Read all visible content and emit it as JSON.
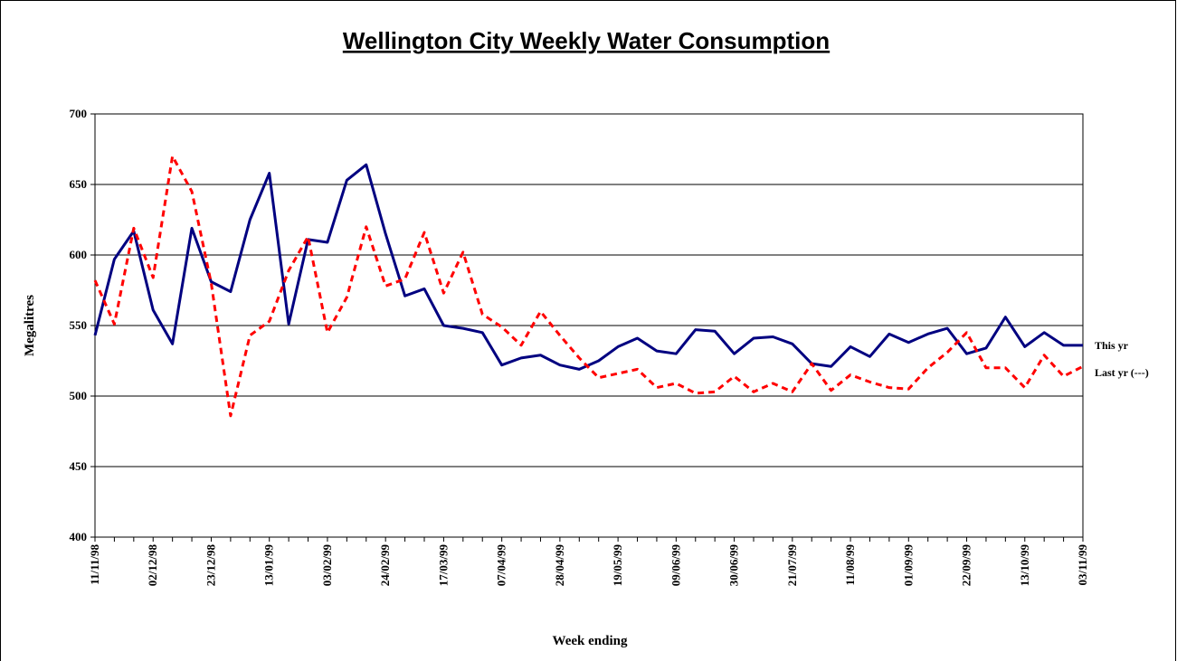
{
  "chart_data": {
    "type": "line",
    "title": "Wellington City Weekly Water Consumption",
    "x_label": "Week ending",
    "y_label": "Megalitres",
    "categories": [
      "11/11/98",
      null,
      null,
      "02/12/98",
      null,
      null,
      "23/12/98",
      null,
      null,
      "13/01/99",
      null,
      null,
      "03/02/99",
      null,
      null,
      "24/02/99",
      null,
      null,
      "17/03/99",
      null,
      null,
      "07/04/99",
      null,
      null,
      "28/04/99",
      null,
      null,
      "19/05/99",
      null,
      null,
      "09/06/99",
      null,
      null,
      "30/06/99",
      null,
      null,
      "21/07/99",
      null,
      null,
      "11/08/99",
      null,
      null,
      "01/09/99",
      null,
      null,
      "22/09/99",
      null,
      null,
      "13/10/99",
      null,
      null,
      "03/11/99"
    ],
    "series": [
      {
        "name": "This yr",
        "color": "#000080",
        "dashed": false,
        "values": [
          543,
          597,
          617,
          561,
          537,
          619,
          581,
          574,
          625,
          658,
          551,
          611,
          609,
          653,
          664,
          615,
          571,
          576,
          550,
          548,
          545,
          522,
          527,
          529,
          522,
          519,
          525,
          535,
          541,
          532,
          530,
          547,
          546,
          530,
          541,
          542,
          537,
          523,
          521,
          535,
          528,
          544,
          538,
          544,
          548,
          530,
          534,
          556,
          535,
          545,
          536,
          536
        ]
      },
      {
        "name": "Last yr (---)",
        "color": "#ff0000",
        "dashed": true,
        "values": [
          582,
          551,
          619,
          584,
          670,
          645,
          580,
          486,
          543,
          553,
          589,
          613,
          545,
          570,
          620,
          578,
          583,
          616,
          573,
          602,
          558,
          549,
          536,
          560,
          543,
          527,
          513,
          516,
          519,
          506,
          509,
          502,
          503,
          514,
          503,
          509,
          503,
          523,
          504,
          515,
          510,
          506,
          505,
          520,
          531,
          545,
          520,
          520,
          506,
          529,
          514,
          521
        ]
      }
    ],
    "ylim": [
      400,
      700
    ],
    "yticks": [
      400,
      450,
      500,
      550,
      600,
      650,
      700
    ],
    "grid": true
  }
}
